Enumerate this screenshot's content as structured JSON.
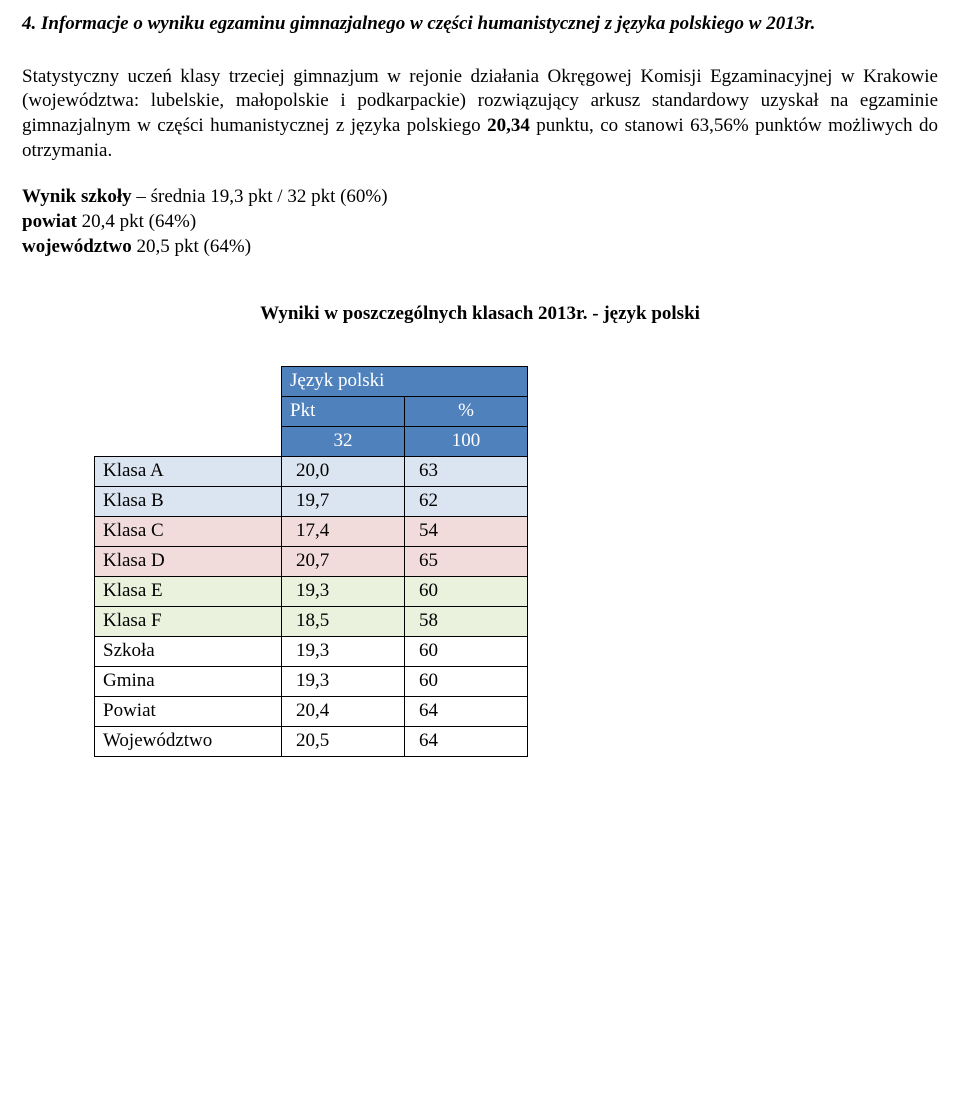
{
  "heading": "4. Informacje o wyniku egzaminu gimnazjalnego w części humanistycznej z języka polskiego w 2013r.",
  "body_paragraph_parts": {
    "p1": "Statystyczny uczeń klasy trzeciej gimnazjum w rejonie działania Okręgowej Komisji Egzaminacyjnej w Krakowie (województwa: lubelskie, małopolskie i podkarpackie) rozwiązujący arkusz standardowy uzyskał na egzaminie gimnazjalnym w części humanistycznej z języka polskiego ",
    "points": "20,34",
    "p2": " punktu, co stanowi 63,56% punktów możliwych do otrzymania."
  },
  "results": {
    "l1a": "Wynik szkoły",
    "l1b": " – średnia 19,3 pkt / 32 pkt   (60%)",
    "l2a": " powiat",
    "l2b": " 20,4 pkt (64%)",
    "l3a": "województwo",
    "l3b": " 20,5 pkt (64%)"
  },
  "subheading": "Wyniki w poszczególnych klasach 2013r. - język polski",
  "table": {
    "header_group": "Język polski",
    "header_pkt": "Pkt",
    "header_pct": "%",
    "max_pkt": "32",
    "max_pct": "100",
    "row_colors": {
      "A": "#dbe5f1",
      "B": "#dbe5f1",
      "C": "#f2dbdb",
      "D": "#f2dbdb",
      "E": "#eaf1dd",
      "F": "#eaf1dd",
      "plain": "#ffffff"
    },
    "rows": [
      {
        "label": "Klasa A",
        "pkt": "20,0",
        "pct": "63",
        "color_key": "A"
      },
      {
        "label": "Klasa B",
        "pkt": "19,7",
        "pct": "62",
        "color_key": "B"
      },
      {
        "label": "Klasa C",
        "pkt": "17,4",
        "pct": "54",
        "color_key": "C"
      },
      {
        "label": "Klasa D",
        "pkt": "20,7",
        "pct": "65",
        "color_key": "D"
      },
      {
        "label": "Klasa E",
        "pkt": "19,3",
        "pct": "60",
        "color_key": "E"
      },
      {
        "label": "Klasa F",
        "pkt": "18,5",
        "pct": "58",
        "color_key": "F"
      },
      {
        "label": "Szkoła",
        "pkt": "19,3",
        "pct": "60",
        "color_key": "plain"
      },
      {
        "label": "Gmina",
        "pkt": "19,3",
        "pct": "60",
        "color_key": "plain"
      },
      {
        "label": "Powiat",
        "pkt": "20,4",
        "pct": "64",
        "color_key": "plain"
      },
      {
        "label": "Województwo",
        "pkt": "20,5",
        "pct": "64",
        "color_key": "plain"
      }
    ]
  }
}
